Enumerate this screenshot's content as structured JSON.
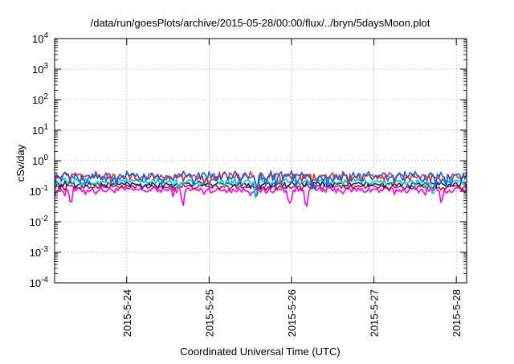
{
  "chart_data": {
    "type": "line",
    "title": "/data/run/goesPlots/archive/2015-05-28/00:00/flux/../bryn/5daysMoon.plot",
    "xlabel": "Coordinated Universal Time (UTC)",
    "ylabel": "cSv/day",
    "xscale": "time",
    "xlim": [
      "2015-05-23T03:00",
      "2015-05-28T03:00"
    ],
    "x_ticks": [
      "2015-5-24",
      "2015-5-25",
      "2015-5-26",
      "2015-5-27",
      "2015-5-28"
    ],
    "yscale": "log",
    "ylim": [
      0.0001,
      10000
    ],
    "y_ticks": [
      {
        "base": "10",
        "exp": "-4"
      },
      {
        "base": "10",
        "exp": "-3"
      },
      {
        "base": "10",
        "exp": "-2"
      },
      {
        "base": "10",
        "exp": "-1"
      },
      {
        "base": "10",
        "exp": "0"
      },
      {
        "base": "10",
        "exp": "1"
      },
      {
        "base": "10",
        "exp": "2"
      },
      {
        "base": "10",
        "exp": "3"
      },
      {
        "base": "10",
        "exp": "4"
      }
    ],
    "grid": true,
    "series": [
      {
        "color": "#ff00ff",
        "level": 0.11,
        "jitter": 0.25,
        "dips": [
          0.2,
          1.55,
          2.85,
          3.05,
          4.7
        ]
      },
      {
        "color": "#b22222",
        "level": 0.14,
        "jitter": 0.15,
        "dips": []
      },
      {
        "color": "#1a1a8c",
        "level": 0.17,
        "jitter": 0.18,
        "dips": [
          2.45
        ]
      },
      {
        "color": "#00cccc",
        "level": 0.2,
        "jitter": 0.25,
        "dips": [
          2.45,
          4.6
        ]
      },
      {
        "color": "#e03030",
        "level": 0.3,
        "jitter": 0.3,
        "dips": [
          2.45
        ]
      },
      {
        "color": "#1e5fd8",
        "level": 0.3,
        "jitter": 0.35,
        "dips": [
          2.45,
          3.15
        ]
      }
    ]
  }
}
